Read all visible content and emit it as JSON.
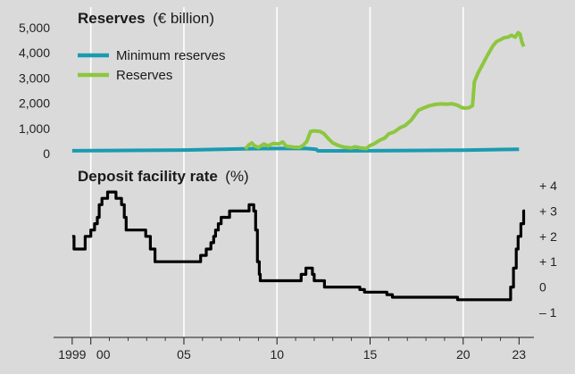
{
  "chart_data": [
    {
      "type": "line",
      "title_main": "Reserves",
      "title_unit": "(€ billion)",
      "ylim": [
        0,
        5000
      ],
      "y_ticks": [
        "5,000",
        "4,000",
        "3,000",
        "2,000",
        "1,000",
        "0"
      ],
      "y_tick_values": [
        5000,
        4000,
        3000,
        2000,
        1000,
        0
      ],
      "series": [
        {
          "name": "Minimum reserves",
          "color": "#1a9bb0",
          "points": [
            [
              1999.0,
              110
            ],
            [
              2002.0,
              125
            ],
            [
              2005.0,
              140
            ],
            [
              2007.0,
              165
            ],
            [
              2008.5,
              190
            ],
            [
              2010.0,
              200
            ],
            [
              2011.5,
              205
            ],
            [
              2012.1,
              170
            ],
            [
              2012.2,
              105
            ],
            [
              2015.0,
              110
            ],
            [
              2018.0,
              125
            ],
            [
              2020.0,
              135
            ],
            [
              2022.0,
              160
            ],
            [
              2023.0,
              165
            ]
          ]
        },
        {
          "name": "Reserves",
          "color": "#8dc63f",
          "points": [
            [
              2008.3,
              180
            ],
            [
              2008.5,
              350
            ],
            [
              2008.65,
              420
            ],
            [
              2008.8,
              300
            ],
            [
              2009.0,
              240
            ],
            [
              2009.3,
              380
            ],
            [
              2009.5,
              300
            ],
            [
              2009.8,
              400
            ],
            [
              2010.1,
              380
            ],
            [
              2010.3,
              460
            ],
            [
              2010.5,
              290
            ],
            [
              2010.9,
              250
            ],
            [
              2011.2,
              240
            ],
            [
              2011.4,
              320
            ],
            [
              2011.6,
              480
            ],
            [
              2011.8,
              880
            ],
            [
              2012.0,
              900
            ],
            [
              2012.3,
              880
            ],
            [
              2012.5,
              800
            ],
            [
              2012.8,
              560
            ],
            [
              2013.0,
              420
            ],
            [
              2013.3,
              320
            ],
            [
              2013.6,
              250
            ],
            [
              2014.0,
              220
            ],
            [
              2014.2,
              270
            ],
            [
              2014.5,
              220
            ],
            [
              2014.8,
              200
            ],
            [
              2015.0,
              320
            ],
            [
              2015.2,
              380
            ],
            [
              2015.5,
              520
            ],
            [
              2015.8,
              620
            ],
            [
              2016.0,
              780
            ],
            [
              2016.3,
              860
            ],
            [
              2016.6,
              1020
            ],
            [
              2016.9,
              1120
            ],
            [
              2017.2,
              1320
            ],
            [
              2017.4,
              1520
            ],
            [
              2017.6,
              1720
            ],
            [
              2017.9,
              1820
            ],
            [
              2018.2,
              1900
            ],
            [
              2018.5,
              1950
            ],
            [
              2018.8,
              1970
            ],
            [
              2019.1,
              1960
            ],
            [
              2019.4,
              1980
            ],
            [
              2019.7,
              1920
            ],
            [
              2019.9,
              1830
            ],
            [
              2020.1,
              1800
            ],
            [
              2020.3,
              1820
            ],
            [
              2020.5,
              1900
            ],
            [
              2020.6,
              2850
            ],
            [
              2020.8,
              3200
            ],
            [
              2021.0,
              3480
            ],
            [
              2021.3,
              3900
            ],
            [
              2021.6,
              4280
            ],
            [
              2021.8,
              4450
            ],
            [
              2022.0,
              4520
            ],
            [
              2022.2,
              4600
            ],
            [
              2022.4,
              4620
            ],
            [
              2022.6,
              4700
            ],
            [
              2022.8,
              4620
            ],
            [
              2022.95,
              4800
            ],
            [
              2023.05,
              4750
            ],
            [
              2023.15,
              4450
            ],
            [
              2023.25,
              4250
            ]
          ]
        }
      ]
    },
    {
      "type": "line",
      "title_main": "Deposit facility rate",
      "title_unit": "(%)",
      "ylim": [
        -1,
        4
      ],
      "y_ticks": [
        "+ 4",
        "+ 3",
        "+ 2",
        "+ 1",
        "0",
        "– 1"
      ],
      "y_tick_values": [
        4,
        3,
        2,
        1,
        0,
        -1
      ],
      "series": [
        {
          "name": "Deposit facility rate",
          "color": "#000000",
          "step": true,
          "points": [
            [
              1999.0,
              2.0
            ],
            [
              1999.1,
              1.5
            ],
            [
              1999.7,
              2.0
            ],
            [
              2000.0,
              2.25
            ],
            [
              2000.2,
              2.5
            ],
            [
              2000.35,
              2.75
            ],
            [
              2000.45,
              3.25
            ],
            [
              2000.6,
              3.5
            ],
            [
              2000.9,
              3.75
            ],
            [
              2001.35,
              3.5
            ],
            [
              2001.65,
              3.25
            ],
            [
              2001.8,
              2.75
            ],
            [
              2001.9,
              2.25
            ],
            [
              2002.95,
              2.0
            ],
            [
              2003.2,
              1.5
            ],
            [
              2003.45,
              1.0
            ],
            [
              2005.9,
              1.25
            ],
            [
              2006.2,
              1.5
            ],
            [
              2006.45,
              1.75
            ],
            [
              2006.6,
              2.0
            ],
            [
              2006.7,
              2.25
            ],
            [
              2006.85,
              2.5
            ],
            [
              2007.0,
              2.75
            ],
            [
              2007.45,
              3.0
            ],
            [
              2008.5,
              3.25
            ],
            [
              2008.75,
              3.0
            ],
            [
              2008.85,
              2.25
            ],
            [
              2008.95,
              1.0
            ],
            [
              2009.05,
              0.5
            ],
            [
              2009.1,
              0.25
            ],
            [
              2011.3,
              0.5
            ],
            [
              2011.55,
              0.75
            ],
            [
              2011.9,
              0.5
            ],
            [
              2012.0,
              0.25
            ],
            [
              2012.55,
              0.0
            ],
            [
              2014.45,
              -0.1
            ],
            [
              2014.7,
              -0.2
            ],
            [
              2015.9,
              -0.3
            ],
            [
              2016.2,
              -0.4
            ],
            [
              2019.7,
              -0.5
            ],
            [
              2022.55,
              0.0
            ],
            [
              2022.7,
              0.75
            ],
            [
              2022.85,
              1.5
            ],
            [
              2022.95,
              2.0
            ],
            [
              2023.1,
              2.5
            ],
            [
              2023.25,
              3.0
            ],
            [
              2023.32,
              3.0
            ]
          ]
        }
      ]
    }
  ],
  "x_axis": {
    "range": [
      1998.0,
      2023.8
    ],
    "ticks": [
      {
        "year": 1999,
        "label": "1999"
      },
      {
        "year": 2000,
        "label": "00"
      },
      {
        "year": 2005,
        "label": "05"
      },
      {
        "year": 2010,
        "label": "10"
      },
      {
        "year": 2015,
        "label": "15"
      },
      {
        "year": 2020,
        "label": "20"
      },
      {
        "year": 2023,
        "label": "23"
      }
    ]
  },
  "legend": {
    "placement": "top-left",
    "items": [
      "Minimum reserves",
      "Reserves"
    ]
  },
  "colors": {
    "background": "#dadada",
    "gridline": "#ffffff",
    "axis": "#1a1a1a"
  }
}
